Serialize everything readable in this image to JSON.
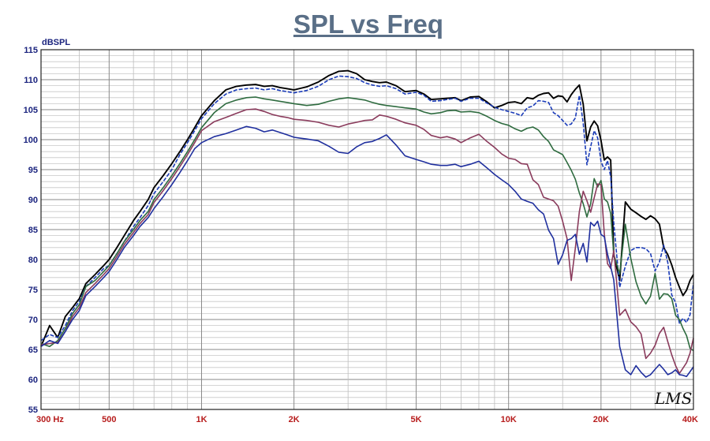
{
  "chart_data": {
    "type": "line",
    "title": "SPL vs Freq",
    "ylabel": "dBSPL",
    "xlabel": "",
    "x_scale": "log",
    "xlim": [
      300,
      40000
    ],
    "ylim": [
      55,
      115
    ],
    "grid": true,
    "y_ticks": [
      "115",
      "110",
      "105",
      "100",
      "95",
      "90",
      "85",
      "80",
      "75",
      "70",
      "65",
      "60",
      "55"
    ],
    "x_ticks": [
      {
        "value": 300,
        "label": "300  Hz"
      },
      {
        "value": 500,
        "label": "500"
      },
      {
        "value": 1000,
        "label": "1K"
      },
      {
        "value": 2000,
        "label": "2K"
      },
      {
        "value": 5000,
        "label": "5K"
      },
      {
        "value": 10000,
        "label": "10K"
      },
      {
        "value": 20000,
        "label": "20K"
      },
      {
        "value": 40000,
        "label": "40K"
      }
    ],
    "watermark": "LMS",
    "x": [
      300,
      320,
      340,
      360,
      380,
      400,
      420,
      450,
      480,
      500,
      530,
      560,
      600,
      630,
      670,
      700,
      750,
      800,
      850,
      900,
      950,
      1000,
      1100,
      1200,
      1300,
      1400,
      1500,
      1600,
      1700,
      1800,
      1900,
      2000,
      2200,
      2400,
      2600,
      2800,
      3000,
      3200,
      3400,
      3600,
      3800,
      4000,
      4300,
      4600,
      5000,
      5300,
      5600,
      6000,
      6300,
      6700,
      7000,
      7500,
      8000,
      8500,
      9000,
      9500,
      10000,
      10500,
      11000,
      11500,
      12000,
      12500,
      13000,
      13500,
      14000,
      14500,
      15000,
      15500,
      16000,
      16500,
      17000,
      17500,
      18000,
      18500,
      19000,
      19500,
      20000,
      20500,
      21000,
      21500,
      22000,
      23000,
      24000,
      25000,
      26000,
      27000,
      28000,
      29000,
      30000,
      31000,
      32000,
      33000,
      34000,
      35000,
      36000,
      37000,
      38000,
      39000,
      40000
    ],
    "series": [
      {
        "color": "#000000",
        "values": [
          65.5,
          69,
          67,
          70.5,
          72,
          73.5,
          76,
          77.5,
          79,
          80,
          82,
          84,
          86.5,
          88,
          90,
          92,
          94,
          96,
          98,
          100,
          102,
          104,
          106.5,
          108.3,
          108.9,
          109.1,
          109.2,
          108.9,
          109,
          108.7,
          108.5,
          108.3,
          108.8,
          109.6,
          110.7,
          111.4,
          111.5,
          111,
          110,
          109.7,
          109.5,
          109.6,
          109,
          108,
          108.2,
          107.6,
          106.7,
          106.8,
          106.9,
          107,
          106.5,
          107.1,
          107.2,
          106.3,
          105.3,
          105.7,
          106.2,
          106.3,
          106,
          107,
          106.8,
          107.4,
          107.7,
          107.8,
          106.9,
          107.3,
          107.2,
          106.3,
          107.5,
          108.4,
          109.1,
          105.9,
          99.8,
          102.1,
          103.1,
          102.3,
          99.9,
          96.6,
          97.1,
          96.6,
          80.8,
          76.5,
          89.6,
          88.4,
          87.8,
          87.2,
          86.7,
          87.3,
          86.8,
          85.9,
          82,
          80.8,
          79.1,
          77,
          75.4,
          74,
          74.9,
          76.5,
          77.5
        ]
      },
      {
        "color": "#1a3bb8",
        "values": [
          66.5,
          67.5,
          67,
          69,
          71.5,
          73,
          75.5,
          77,
          78.5,
          79,
          81,
          83,
          85.5,
          87,
          89,
          91,
          93,
          95,
          97.5,
          99.5,
          101.5,
          103.5,
          106,
          107.6,
          108.3,
          108.5,
          108.6,
          108.3,
          108.5,
          108.2,
          108,
          107.8,
          108.2,
          108.9,
          110,
          110.6,
          110.5,
          110.2,
          109.5,
          109.1,
          108.9,
          109,
          108.5,
          107.6,
          107.9,
          107.4,
          106.4,
          106.5,
          106.7,
          106.9,
          106.4,
          106.9,
          106.9,
          106.1,
          105.4,
          105,
          104.7,
          104.4,
          104,
          105.3,
          105.6,
          106.5,
          106.4,
          106.2,
          104.5,
          104,
          103.2,
          102.4,
          102.6,
          103.6,
          107.4,
          102.7,
          95.8,
          98.8,
          101.5,
          100.3,
          96.4,
          95,
          96.5,
          93.8,
          86.1,
          75.4,
          78.9,
          81.5,
          82,
          82,
          81.8,
          81,
          78.1,
          79.6,
          82.4,
          79.5,
          74.1,
          72.8,
          69.4,
          70.2,
          69.5,
          70.8,
          76.1
        ]
      },
      {
        "color": "#2e6b3f",
        "values": [
          66,
          65.5,
          66.5,
          68.5,
          71,
          72.5,
          75.5,
          76.5,
          78,
          79,
          81,
          83,
          85,
          86.5,
          88,
          90,
          92,
          94,
          96,
          98,
          100,
          102,
          104.5,
          106,
          106.6,
          107,
          107.1,
          106.8,
          106.6,
          106.4,
          106.2,
          106,
          105.7,
          105.9,
          106.4,
          106.8,
          107,
          106.8,
          106.6,
          106.2,
          105.9,
          105.7,
          105.5,
          105.3,
          105.1,
          104.6,
          104.3,
          104.5,
          104.8,
          104.9,
          104.6,
          104.7,
          104.5,
          103.9,
          103.2,
          102.7,
          102.4,
          101.8,
          101.4,
          101.9,
          102.1,
          101.6,
          100.5,
          99.7,
          98.3,
          97.9,
          97.5,
          96.2,
          94.9,
          93.4,
          91.1,
          89.3,
          87.1,
          89.3,
          93.5,
          92.1,
          93.2,
          90.1,
          89.6,
          87.7,
          80.9,
          77.6,
          85.9,
          80.2,
          76.3,
          73.9,
          72.6,
          73.9,
          77.7,
          73.4,
          74.3,
          74.2,
          73.5,
          70.7,
          70,
          68.5,
          67.3,
          65.2,
          64.8
        ]
      },
      {
        "color": "#8a3b5c",
        "values": [
          65.8,
          66,
          66.2,
          68,
          70.5,
          72,
          74.5,
          76,
          77.5,
          78.5,
          80.5,
          82.5,
          84.5,
          86,
          87.5,
          89.5,
          91.5,
          93.5,
          95.5,
          97.5,
          99.5,
          101.5,
          103,
          103.7,
          104.4,
          105,
          105.1,
          104.7,
          104.2,
          103.9,
          103.7,
          103.4,
          103.2,
          102.9,
          102.4,
          102.1,
          102.6,
          102.9,
          103.2,
          103.3,
          104.1,
          103.9,
          103.4,
          102.8,
          102.4,
          101.7,
          100.7,
          100.3,
          100.5,
          100.1,
          99.5,
          100.3,
          100.9,
          99.7,
          98.7,
          97.6,
          96.9,
          96.7,
          96,
          95.9,
          93.3,
          92.5,
          90.4,
          90.1,
          89.8,
          88.9,
          86.4,
          83.5,
          76.5,
          81.9,
          88,
          91.4,
          89.8,
          87.9,
          90.3,
          92.6,
          92.5,
          84.3,
          79.3,
          78.5,
          81.5,
          70.7,
          71.7,
          69.6,
          68.8,
          67.6,
          63.5,
          64.4,
          65.7,
          67.7,
          68.7,
          66.3,
          64.1,
          62.3,
          61,
          61.9,
          62.8,
          64.4,
          66.9
        ]
      },
      {
        "color": "#1f2f9e",
        "values": [
          65.5,
          66.5,
          66,
          68,
          70,
          71.5,
          74,
          75.5,
          77,
          78,
          80,
          82,
          84,
          85.5,
          87,
          88.5,
          90.5,
          92.5,
          94.5,
          96.5,
          98.5,
          99.5,
          100.5,
          101,
          101.6,
          102.2,
          101.9,
          101.3,
          101.6,
          101.2,
          100.8,
          100.4,
          100.1,
          99.8,
          98.9,
          97.9,
          97.7,
          98.8,
          99.5,
          99.7,
          100.2,
          100.8,
          99.1,
          97.3,
          96.7,
          96.3,
          95.9,
          95.7,
          95.7,
          95.9,
          95.5,
          95.9,
          96.4,
          95.3,
          94.2,
          93.3,
          92.5,
          91.4,
          90.1,
          89.7,
          89.4,
          88.3,
          87.6,
          84.9,
          83.5,
          79.2,
          80.8,
          83.2,
          83.5,
          84.2,
          80.9,
          82.7,
          79.6,
          86.2,
          85.6,
          86.4,
          84.2,
          83.8,
          80.9,
          78.8,
          76.6,
          65.5,
          61.6,
          60.8,
          62.3,
          61.2,
          60.4,
          60.8,
          61.7,
          62.5,
          61.7,
          60.8,
          61.1,
          61.6,
          60.8,
          60.7,
          60.5,
          61.3,
          62.1
        ]
      }
    ]
  }
}
